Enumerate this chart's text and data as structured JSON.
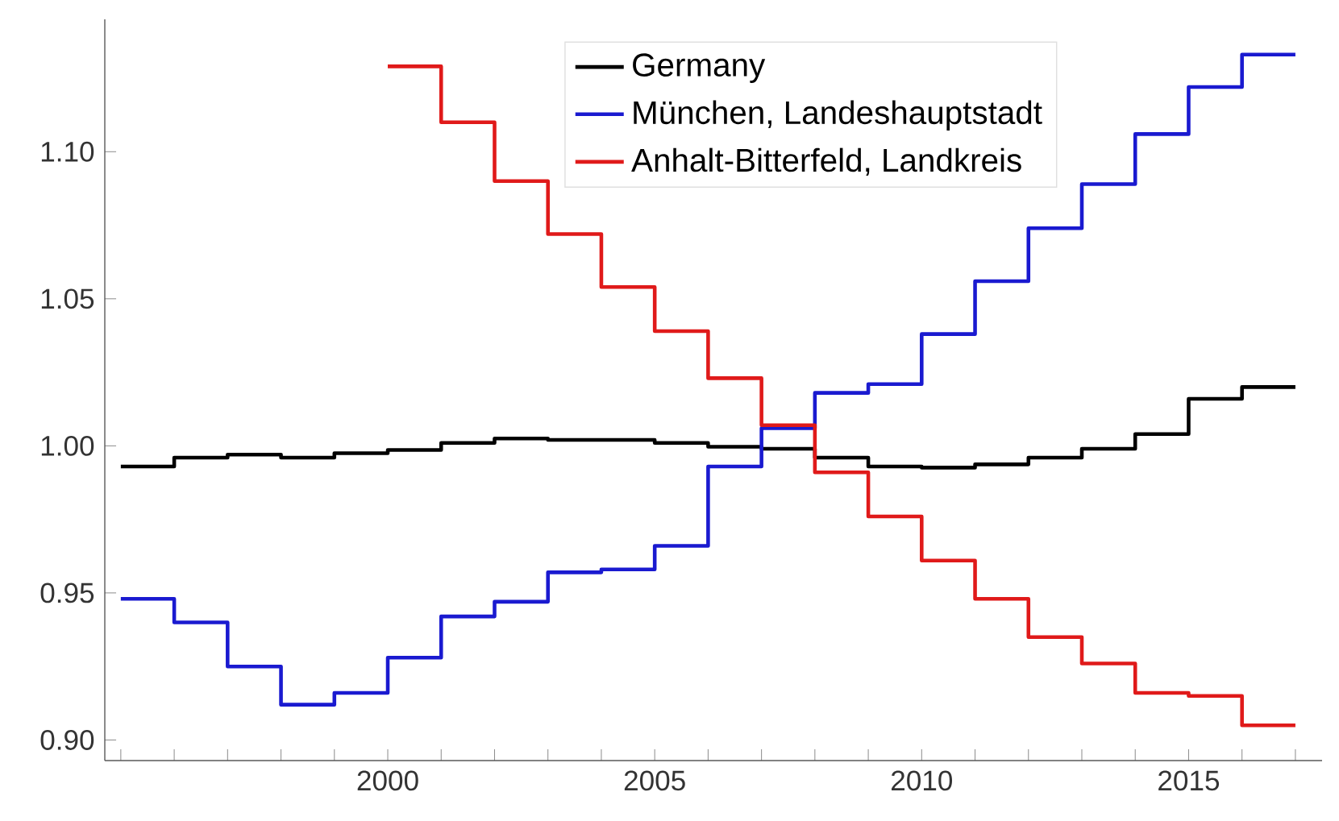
{
  "chart_data": {
    "type": "step",
    "xlim": [
      1994.7,
      2017.5
    ],
    "ylim": [
      0.893,
      1.145
    ],
    "xticks": [
      {
        "value": 1995,
        "label": null
      },
      {
        "value": 1996,
        "label": null
      },
      {
        "value": 1997,
        "label": null
      },
      {
        "value": 1998,
        "label": null
      },
      {
        "value": 1999,
        "label": null
      },
      2000,
      {
        "value": 2001,
        "label": null
      },
      {
        "value": 2002,
        "label": null
      },
      {
        "value": 2003,
        "label": null
      },
      {
        "value": 2004,
        "label": null
      },
      2005,
      {
        "value": 2006,
        "label": null
      },
      {
        "value": 2007,
        "label": null
      },
      {
        "value": 2008,
        "label": null
      },
      {
        "value": 2009,
        "label": null
      },
      2010,
      {
        "value": 2011,
        "label": null
      },
      {
        "value": 2012,
        "label": null
      },
      {
        "value": 2013,
        "label": null
      },
      {
        "value": 2014,
        "label": null
      },
      2015,
      {
        "value": 2016,
        "label": null
      },
      {
        "value": 2017,
        "label": null
      }
    ],
    "yticks": [
      {
        "value": 0.9,
        "label": "0.90"
      },
      {
        "value": 0.95,
        "label": "0.95"
      },
      {
        "value": 1.0,
        "label": "1.00"
      },
      {
        "value": 1.05,
        "label": "1.05"
      },
      {
        "value": 1.1,
        "label": "1.10"
      }
    ],
    "legend": "top",
    "grid": false,
    "series": [
      {
        "name": "Germany",
        "color": "#000000",
        "x": [
          1995,
          1996,
          1997,
          1998,
          1999,
          2000,
          2001,
          2002,
          2003,
          2004,
          2005,
          2006,
          2007,
          2008,
          2009,
          2010,
          2011,
          2012,
          2013,
          2014,
          2015,
          2016,
          2017
        ],
        "values": [
          0.993,
          0.996,
          0.997,
          0.996,
          0.9975,
          0.9986,
          1.001,
          1.0025,
          1.002,
          1.002,
          1.001,
          0.9997,
          0.999,
          0.996,
          0.993,
          0.9926,
          0.9937,
          0.996,
          0.999,
          1.004,
          1.016,
          1.02,
          1.02
        ]
      },
      {
        "name": "München, Landeshauptstadt",
        "color": "#1a1ad0",
        "x": [
          1995,
          1996,
          1997,
          1998,
          1999,
          2000,
          2001,
          2002,
          2003,
          2004,
          2005,
          2006,
          2007,
          2008,
          2009,
          2010,
          2011,
          2012,
          2013,
          2014,
          2015,
          2016,
          2017
        ],
        "values": [
          0.948,
          0.94,
          0.925,
          0.912,
          0.916,
          0.928,
          0.942,
          0.947,
          0.957,
          0.958,
          0.966,
          0.993,
          1.006,
          1.018,
          1.021,
          1.038,
          1.056,
          1.074,
          1.089,
          1.106,
          1.122,
          1.133,
          1.133
        ]
      },
      {
        "name": "Anhalt-Bitterfeld, Landkreis",
        "color": "#e01a1a",
        "x": [
          2000,
          2001,
          2002,
          2003,
          2004,
          2005,
          2006,
          2007,
          2008,
          2009,
          2010,
          2011,
          2012,
          2013,
          2014,
          2015,
          2016,
          2017
        ],
        "values": [
          1.129,
          1.11,
          1.09,
          1.072,
          1.054,
          1.039,
          1.023,
          1.007,
          0.991,
          0.976,
          0.961,
          0.948,
          0.935,
          0.926,
          0.916,
          0.915,
          0.905,
          0.905
        ]
      }
    ]
  }
}
